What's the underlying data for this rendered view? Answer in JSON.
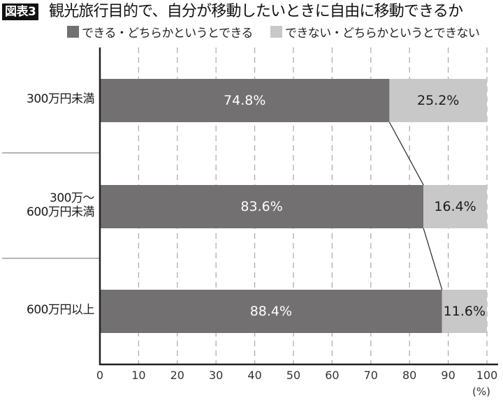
{
  "header": {
    "badge": "図表3",
    "title": "観光旅行目的で、自分が移動したいときに自由に移動できるか"
  },
  "legend": [
    {
      "label": "できる・どちらかというとできる",
      "color": "#727071"
    },
    {
      "label": "できない・どちらかというとできない",
      "color": "#c8c8c9"
    }
  ],
  "axis": {
    "ticks": [
      "0",
      "10",
      "20",
      "30",
      "40",
      "50",
      "60",
      "70",
      "80",
      "90",
      "100"
    ],
    "unit": "(%)"
  },
  "categories_display": [
    {
      "lines": [
        "300万円未満"
      ]
    },
    {
      "lines": [
        "300万〜",
        "600万円未満"
      ]
    },
    {
      "lines": [
        "600万円以上"
      ]
    }
  ],
  "bars": [
    {
      "can": "74.8%",
      "cannot": "25.2%"
    },
    {
      "can": "83.6%",
      "cannot": "16.4%"
    },
    {
      "can": "88.4%",
      "cannot": "11.6%"
    }
  ],
  "chart_data": {
    "type": "bar",
    "orientation": "horizontal",
    "stacked": true,
    "title": "観光旅行目的で、自分が移動したいときに自由に移動できるか",
    "categories": [
      "300万円未満",
      "300万〜600万円未満",
      "600万円以上"
    ],
    "series": [
      {
        "name": "できる・どちらかというとできる",
        "values": [
          74.8,
          83.6,
          88.4
        ],
        "color": "#727071"
      },
      {
        "name": "できない・どちらかというとできない",
        "values": [
          25.2,
          16.4,
          11.6
        ],
        "color": "#c8c8c9"
      }
    ],
    "xlabel": "(%)",
    "ylabel": "",
    "xlim": [
      0,
      100
    ],
    "xticks": [
      0,
      10,
      20,
      30,
      40,
      50,
      60,
      70,
      80,
      90,
      100
    ],
    "grid": "vertical dashed",
    "legend_position": "top",
    "annotations": [
      "connector lines linking the ends of the first series between bars"
    ]
  }
}
